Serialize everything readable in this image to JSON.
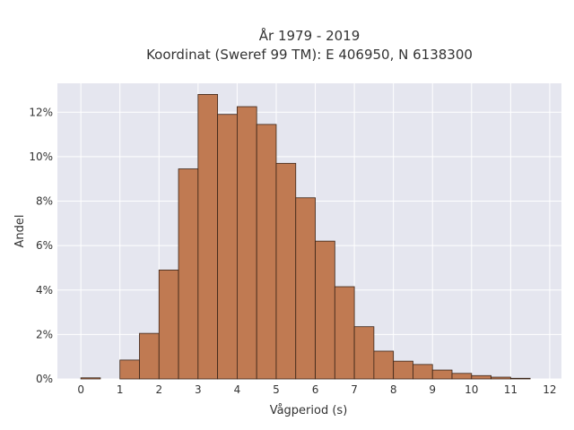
{
  "chart_data": {
    "type": "bar",
    "title": "År 1979 - 2019",
    "subtitle": "Koordinat (Sweref 99 TM): E 406950, N 6138300",
    "xlabel": "Vågperiod (s)",
    "ylabel": "Andel",
    "bin_width": 0.5,
    "bin_edges_start": [
      0,
      0.5,
      1,
      1.5,
      2,
      2.5,
      3,
      3.5,
      4,
      4.5,
      5,
      5.5,
      6,
      6.5,
      7,
      7.5,
      8,
      8.5,
      9,
      9.5,
      10,
      10.5,
      11,
      11.5
    ],
    "values": [
      0.05,
      0,
      0.85,
      2.05,
      4.9,
      9.45,
      12.8,
      11.9,
      12.25,
      11.45,
      9.7,
      8.15,
      6.2,
      4.15,
      2.35,
      1.25,
      0.8,
      0.65,
      0.4,
      0.25,
      0.15,
      0.08,
      0.03,
      0
    ],
    "xlim": [
      -0.6,
      12.3
    ],
    "ylim": [
      0,
      13.3
    ],
    "x_ticks": [
      0,
      1,
      2,
      3,
      4,
      5,
      6,
      7,
      8,
      9,
      10,
      11,
      12
    ],
    "y_ticks": [
      0,
      2,
      4,
      6,
      8,
      10,
      12
    ],
    "y_tick_suffix": "%",
    "grid": true,
    "colors": {
      "bar_fill": "#c07a52",
      "bar_stroke": "#3a2417",
      "plot_background": "#e5e6ef",
      "grid": "#ffffff"
    }
  }
}
